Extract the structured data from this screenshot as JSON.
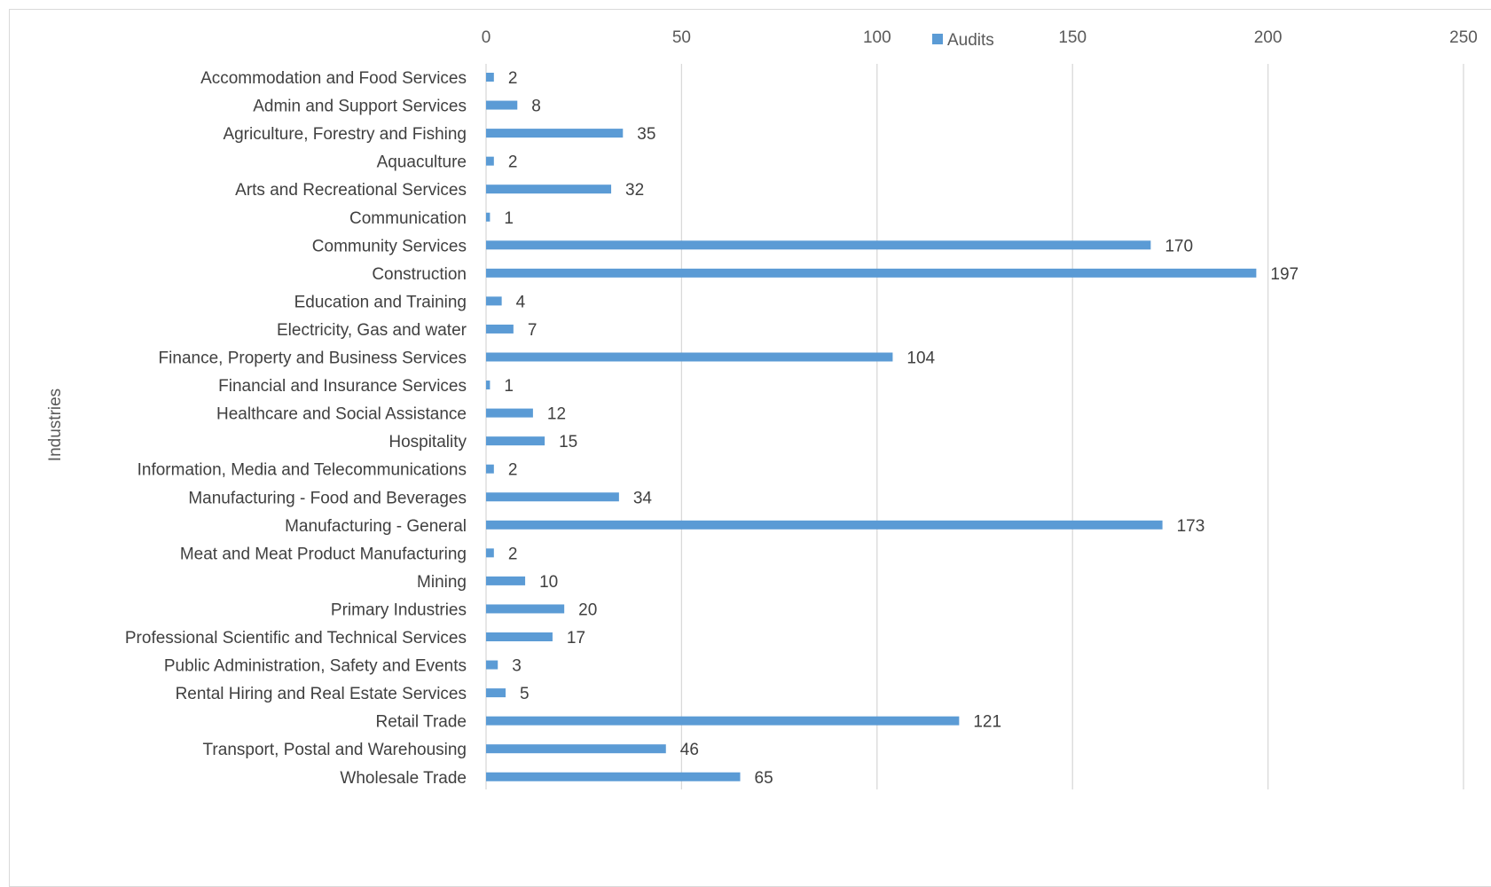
{
  "chart_data": {
    "type": "bar",
    "orientation": "horizontal",
    "categories": [
      "Accommodation and Food Services",
      "Admin and Support Services",
      "Agriculture, Forestry and Fishing",
      "Aquaculture",
      "Arts and Recreational Services",
      "Communication",
      "Community Services",
      "Construction",
      "Education and Training",
      "Electricity, Gas and water",
      "Finance, Property and Business Services",
      "Financial and Insurance Services",
      "Healthcare and Social Assistance",
      "Hospitality",
      "Information, Media and Telecommunications",
      "Manufacturing - Food and Beverages",
      "Manufacturing - General",
      "Meat and Meat Product Manufacturing",
      "Mining",
      "Primary Industries",
      "Professional Scientific and Technical Services",
      "Public Administration, Safety and Events",
      "Rental Hiring and Real Estate Services",
      "Retail Trade",
      "Transport, Postal and Warehousing",
      "Wholesale Trade"
    ],
    "series": [
      {
        "name": "Audits",
        "values": [
          2,
          8,
          35,
          2,
          32,
          1,
          170,
          197,
          4,
          7,
          104,
          1,
          12,
          15,
          2,
          34,
          173,
          2,
          10,
          20,
          17,
          3,
          5,
          121,
          46,
          65
        ]
      }
    ],
    "xlim": [
      0,
      250
    ],
    "xticks": [
      0,
      50,
      100,
      150,
      200,
      250
    ],
    "ylabel": "Industries",
    "xlabel": "",
    "title": "",
    "grid": "vertical",
    "legend": "top",
    "bar_color": "#5b9bd5",
    "grid_color": "#d9d9d9",
    "data_labels": true
  }
}
